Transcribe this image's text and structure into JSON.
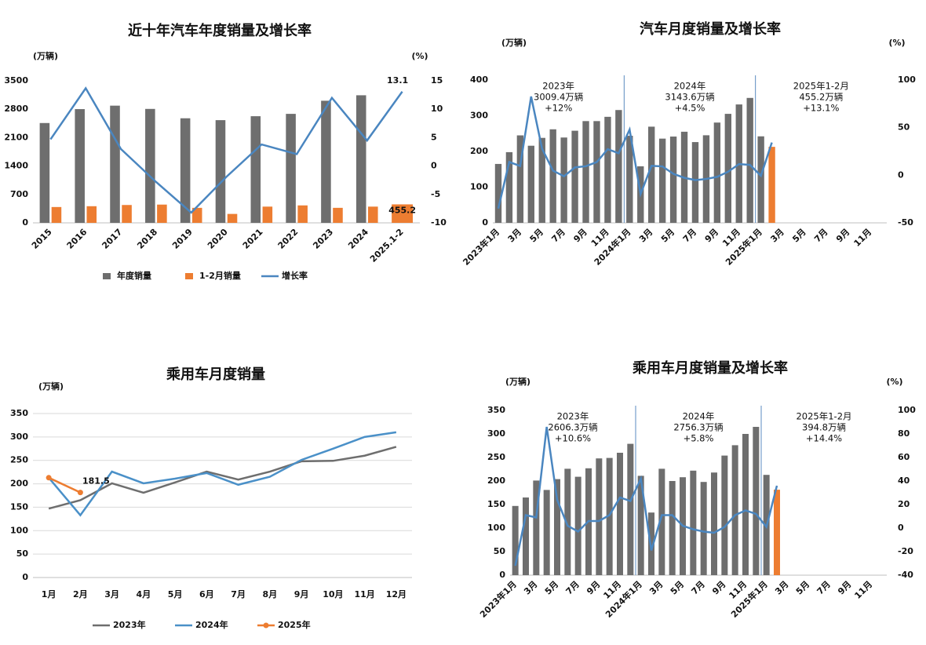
{
  "chart_data": [
    {
      "type": "combo",
      "title": "近十年汽车年度销量及增长率",
      "y_label": "(万辆)",
      "y2_label": "(%)",
      "categories": [
        "2015",
        "2016",
        "2017",
        "2018",
        "2019",
        "2020",
        "2021",
        "2022",
        "2023",
        "2024",
        "2025.1-2"
      ],
      "ylim": [
        0,
        3500
      ],
      "yticks": [
        0,
        700,
        1400,
        2100,
        2800,
        3500
      ],
      "y2lim": [
        -10,
        15
      ],
      "y2ticks": [
        -10,
        -5,
        0,
        5,
        10,
        15
      ],
      "series": [
        {
          "name": "年度销量",
          "type": "bar",
          "color": "#6e6e6e",
          "values": [
            2460,
            2803,
            2888,
            2808,
            2577,
            2531,
            2628,
            2686,
            3009,
            3144,
            null
          ]
        },
        {
          "name": "1-2月销量",
          "type": "bar",
          "color": "#ed7d31",
          "values": [
            390,
            410,
            440,
            450,
            370,
            220,
            400,
            430,
            370,
            400,
            455.2
          ],
          "value_labels": [
            null,
            null,
            null,
            null,
            null,
            null,
            null,
            null,
            null,
            null,
            "455.2"
          ]
        },
        {
          "name": "增长率",
          "type": "line",
          "axis": "y2",
          "color": "#4a86c0",
          "values": [
            4.7,
            13.7,
            3,
            -2.8,
            -8.2,
            -1.9,
            3.8,
            2.1,
            12,
            4.5,
            13.1
          ],
          "value_labels": [
            null,
            null,
            null,
            null,
            null,
            null,
            null,
            null,
            null,
            null,
            "13.1"
          ]
        }
      ]
    },
    {
      "type": "combo",
      "title": "汽车月度销量及增长率",
      "y_label": "(万辆)",
      "y2_label": "(%)",
      "categories": [
        "2023年1月",
        null,
        "3月",
        null,
        "5月",
        null,
        "7月",
        null,
        "9月",
        null,
        "11月",
        null,
        "2024年1月",
        null,
        "3月",
        null,
        "5月",
        null,
        "7月",
        null,
        "9月",
        null,
        "11月",
        null,
        "2025年1月",
        null,
        "3月",
        null,
        "5月",
        null,
        "7月",
        null,
        "9月",
        null,
        "11月",
        null
      ],
      "ylim": [
        0,
        400
      ],
      "yticks": [
        0,
        100,
        200,
        300,
        400
      ],
      "y2lim": [
        -50,
        100
      ],
      "y2ticks": [
        -50,
        0,
        50,
        100
      ],
      "annotations": [
        [
          "2023年",
          "3009.4万辆",
          "+12%"
        ],
        [
          "2024年",
          "3143.6万辆",
          "+4.5%"
        ],
        [
          "2025年1-2月",
          "455.2万辆",
          "+13.1%"
        ]
      ],
      "series": [
        {
          "type": "bar",
          "color": "#6e6e6e",
          "values": [
            165,
            198,
            245,
            216,
            238,
            262,
            239,
            258,
            285,
            285,
            297,
            316,
            243.9,
            158.4,
            269.4,
            235.9,
            241.7,
            255.2,
            226.2,
            245.3,
            280.9,
            305.3,
            331.6,
            349.9,
            242.3,
            null,
            null,
            null,
            null,
            null,
            null,
            null,
            null,
            null,
            null,
            null
          ]
        },
        {
          "type": "bar",
          "color": "#ed7d31",
          "values": [
            null,
            null,
            null,
            null,
            null,
            null,
            null,
            null,
            null,
            null,
            null,
            null,
            null,
            null,
            null,
            null,
            null,
            null,
            null,
            null,
            null,
            null,
            null,
            null,
            null,
            212.9,
            null,
            null,
            null,
            null,
            null,
            null,
            null,
            null,
            null,
            null
          ]
        },
        {
          "type": "line",
          "axis": "y2",
          "color": "#4a86c0",
          "values": [
            -35,
            13.9,
            9.7,
            82.7,
            27.9,
            4.8,
            -1.1,
            8.2,
            9.5,
            13.8,
            27.4,
            23.1,
            47.9,
            -19.9,
            9.9,
            9.3,
            1.5,
            -2.7,
            -5.1,
            -3.9,
            -1.7,
            3.7,
            11.7,
            10.9,
            -0.6,
            34.4,
            null,
            null,
            null,
            null,
            null,
            null,
            null,
            null,
            null,
            null
          ]
        }
      ]
    },
    {
      "type": "line",
      "title": "乘用车月度销量",
      "y_label": "(万辆)",
      "categories": [
        "1月",
        "2月",
        "3月",
        "4月",
        "5月",
        "6月",
        "7月",
        "8月",
        "9月",
        "10月",
        "11月",
        "12月"
      ],
      "ylim": [
        0,
        350
      ],
      "yticks": [
        0,
        50,
        100,
        150,
        200,
        250,
        300,
        350
      ],
      "series": [
        {
          "name": "2023年",
          "type": "line",
          "color": "#6e6e6e",
          "values": [
            147,
            165,
            201,
            181,
            203,
            226,
            209,
            226,
            248,
            249,
            260,
            279
          ]
        },
        {
          "name": "2024年",
          "type": "line",
          "color": "#4a90c8",
          "values": [
            213,
            133,
            226,
            201,
            211,
            223,
            198,
            215,
            251,
            275,
            300,
            310
          ]
        },
        {
          "name": "2025年",
          "type": "line",
          "marker": true,
          "color": "#ed7d31",
          "values": [
            213,
            181.5,
            null,
            null,
            null,
            null,
            null,
            null,
            null,
            null,
            null,
            null
          ],
          "value_labels": [
            null,
            "181.5",
            null,
            null,
            null,
            null,
            null,
            null,
            null,
            null,
            null,
            null
          ]
        }
      ]
    },
    {
      "type": "combo",
      "title": "乘用车月度销量及增长率",
      "y_label": "(万辆)",
      "y2_label": "(%)",
      "categories": [
        "2023年1月",
        null,
        "3月",
        null,
        "5月",
        null,
        "7月",
        null,
        "9月",
        null,
        "11月",
        null,
        "2024年1月",
        null,
        "3月",
        null,
        "5月",
        null,
        "7月",
        null,
        "9月",
        null,
        "11月",
        null,
        "2025年1月",
        null,
        "3月",
        null,
        "5月",
        null,
        "7月",
        null,
        "9月",
        null,
        "11月",
        null
      ],
      "ylim": [
        0,
        350
      ],
      "yticks": [
        0,
        50,
        100,
        150,
        200,
        250,
        300,
        350
      ],
      "y2lim": [
        -40,
        100
      ],
      "y2ticks": [
        -40,
        -20,
        0,
        20,
        40,
        60,
        80,
        100
      ],
      "annotations": [
        [
          "2023年",
          "2606.3万辆",
          "+10.6%"
        ],
        [
          "2024年",
          "2756.3万辆",
          "+5.8%"
        ],
        [
          "2025年1-2月",
          "394.8万辆",
          "+14.4%"
        ]
      ],
      "series": [
        {
          "type": "bar",
          "color": "#6e6e6e",
          "values": [
            147,
            165,
            201,
            181,
            204,
            226,
            209,
            227,
            248,
            249,
            260,
            279,
            211,
            133,
            226,
            200,
            208,
            222,
            198,
            218,
            254,
            276,
            300,
            315,
            213,
            null,
            null,
            null,
            null,
            null,
            null,
            null,
            null,
            null,
            null,
            null
          ]
        },
        {
          "type": "bar",
          "color": "#ed7d31",
          "values": [
            null,
            null,
            null,
            null,
            null,
            null,
            null,
            null,
            null,
            null,
            null,
            null,
            null,
            null,
            null,
            null,
            null,
            null,
            null,
            null,
            null,
            null,
            null,
            null,
            null,
            181.5,
            null,
            null,
            null,
            null,
            null,
            null,
            null,
            null,
            null,
            null
          ]
        },
        {
          "type": "line",
          "axis": "y2",
          "color": "#4a86c0",
          "values": [
            -32,
            11,
            9,
            86,
            24,
            2,
            -3,
            6,
            6,
            11,
            26,
            23,
            42,
            -19,
            11,
            11,
            2,
            -1,
            -3,
            -4,
            1,
            11,
            15,
            12,
            1,
            36,
            null,
            null,
            null,
            null,
            null,
            null,
            null,
            null,
            null,
            null
          ]
        }
      ]
    }
  ]
}
